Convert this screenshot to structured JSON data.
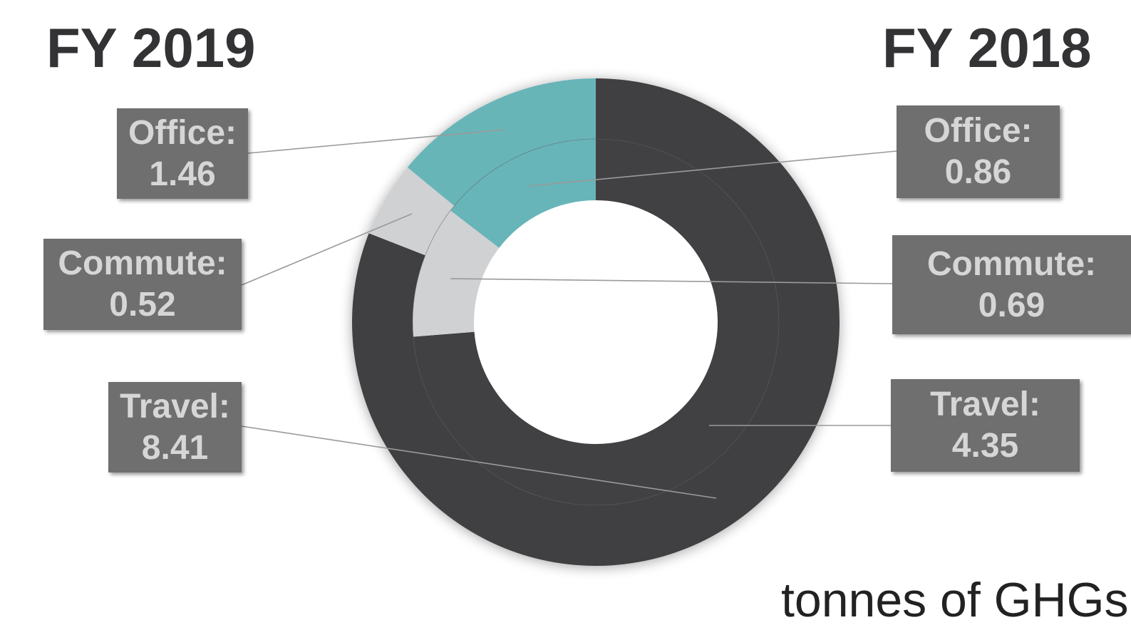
{
  "chart_data": {
    "type": "donut",
    "title": "",
    "unit_label": "tonnes of GHGs",
    "rings": [
      {
        "name": "FY 2019",
        "ring": "outer",
        "slices": [
          {
            "category": "Travel",
            "label": "Travel:",
            "value": 8.41,
            "value_text": "8.41",
            "color": "#414143"
          },
          {
            "category": "Commute",
            "label": "Commute:",
            "value": 0.52,
            "value_text": "0.52",
            "color": "#d0d1d3"
          },
          {
            "category": "Office",
            "label": "Office:",
            "value": 1.46,
            "value_text": "1.46",
            "color": "#67b5b8"
          }
        ]
      },
      {
        "name": "FY 2018",
        "ring": "inner",
        "slices": [
          {
            "category": "Travel",
            "label": "Travel:",
            "value": 4.35,
            "value_text": "4.35",
            "color": "#414143"
          },
          {
            "category": "Commute",
            "label": "Commute:",
            "value": 0.69,
            "value_text": "0.69",
            "color": "#d0d1d3"
          },
          {
            "category": "Office",
            "label": "Office:",
            "value": 0.86,
            "value_text": "0.86",
            "color": "#67b5b8"
          }
        ]
      }
    ]
  },
  "colors": {
    "travel": "#414143",
    "commute": "#d0d1d3",
    "office": "#67b5b8",
    "label_box": "#6f6f6f",
    "label_text": "#d6d6d6",
    "title_text": "#333335"
  }
}
